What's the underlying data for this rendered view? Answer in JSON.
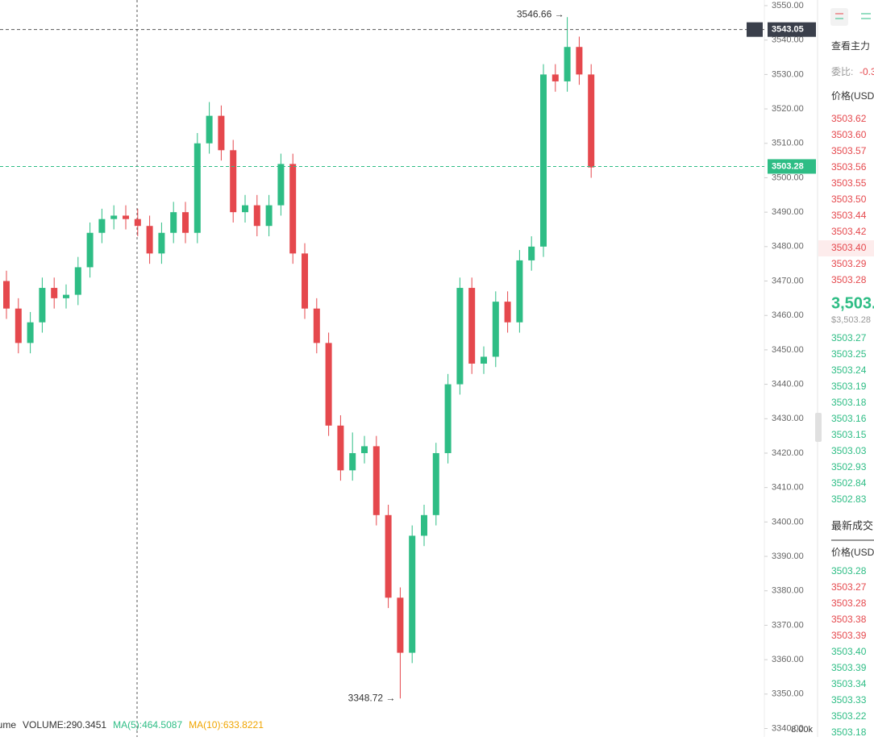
{
  "chart_data": {
    "type": "candlestick",
    "up_color": "#2ebd85",
    "down_color": "#e5484d",
    "open": [
      3470,
      3462,
      3452,
      3458,
      3468,
      3465,
      3466,
      3474,
      3484,
      3488,
      3489,
      3488,
      3486,
      3478,
      3484,
      3490,
      3484,
      3510,
      3518,
      3508,
      3490,
      3492,
      3486,
      3492,
      3504,
      3478,
      3462,
      3452,
      3428,
      3415,
      3420,
      3422,
      3402,
      3378,
      3362,
      3396,
      3402,
      3420,
      3440,
      3468,
      3446,
      3448,
      3464,
      3458,
      3476,
      3480,
      3530,
      3528,
      3538,
      3530
    ],
    "high": [
      3473,
      3465,
      3461,
      3471,
      3471,
      3469,
      3477,
      3487,
      3491,
      3492,
      3492,
      3491,
      3489,
      3487,
      3493,
      3493,
      3513,
      3522,
      3521,
      3511,
      3495,
      3495,
      3495,
      3507,
      3507,
      3481,
      3465,
      3455,
      3431,
      3426,
      3425,
      3425,
      3405,
      3381,
      3399,
      3405,
      3423,
      3443,
      3471,
      3471,
      3451,
      3467,
      3467,
      3479,
      3483,
      3533,
      3533,
      3546.66,
      3541,
      3533
    ],
    "low": [
      3459,
      3449,
      3449,
      3455,
      3462,
      3462,
      3463,
      3471,
      3481,
      3485,
      3485,
      3483,
      3475,
      3475,
      3481,
      3481,
      3481,
      3507,
      3505,
      3487,
      3487,
      3483,
      3483,
      3489,
      3475,
      3459,
      3449,
      3425,
      3412,
      3412,
      3417,
      3399,
      3375,
      3348.72,
      3359,
      3393,
      3399,
      3417,
      3437,
      3443,
      3443,
      3445,
      3455,
      3455,
      3473,
      3477,
      3525,
      3525,
      3527,
      3500
    ],
    "close": [
      3462,
      3452,
      3458,
      3468,
      3465,
      3466,
      3474,
      3484,
      3488,
      3489,
      3488,
      3486,
      3478,
      3484,
      3490,
      3484,
      3510,
      3518,
      3508,
      3490,
      3492,
      3486,
      3492,
      3504,
      3478,
      3462,
      3452,
      3428,
      3415,
      3420,
      3422,
      3402,
      3378,
      3362,
      3396,
      3402,
      3420,
      3440,
      3468,
      3446,
      3448,
      3464,
      3458,
      3476,
      3480,
      3530,
      3528,
      3538,
      3530,
      3503
    ],
    "ylim": [
      3337.6,
      3551.7
    ],
    "yticks": [
      {
        "value": 3340,
        "label": "3340.00"
      },
      {
        "value": 3350,
        "label": "3350.00"
      },
      {
        "value": 3360,
        "label": "3360.00"
      },
      {
        "value": 3370,
        "label": "3370.00"
      },
      {
        "value": 3380,
        "label": "3380.00"
      },
      {
        "value": 3390,
        "label": "3390.00"
      },
      {
        "value": 3400,
        "label": "3400.00"
      },
      {
        "value": 3410,
        "label": "3410.00"
      },
      {
        "value": 3420,
        "label": "3420.00"
      },
      {
        "value": 3430,
        "label": "3430.00"
      },
      {
        "value": 3440,
        "label": "3440.00"
      },
      {
        "value": 3450,
        "label": "3450.00"
      },
      {
        "value": 3460,
        "label": "3460.00"
      },
      {
        "value": 3470,
        "label": "3470.00"
      },
      {
        "value": 3480,
        "label": "3480.00"
      },
      {
        "value": 3490,
        "label": "3490.00"
      },
      {
        "value": 3500,
        "label": "3500.00"
      },
      {
        "value": 3510,
        "label": "3510.00"
      },
      {
        "value": 3520,
        "label": "3520.00"
      },
      {
        "value": 3530,
        "label": "3530.00"
      },
      {
        "value": 3540,
        "label": "3540.00"
      },
      {
        "value": 3550,
        "label": "3550.00"
      }
    ],
    "crosshair_price": 3543.05,
    "last_price": 3503.28,
    "annotations": {
      "high": "3546.66 →",
      "low": "3348.72 →"
    },
    "volume_legend": [
      "lume",
      "VOLUME:290.3451",
      "MA(5):464.5087",
      "MA(10):633.8221"
    ],
    "volume_axis": "8.00k"
  },
  "panel": {
    "link": "查看主力",
    "ratio_label": "委比:",
    "ratio": "-0.3",
    "price_header": "价格(USD",
    "asks": [
      "3503.62",
      "3503.60",
      "3503.57",
      "3503.56",
      "3503.55",
      "3503.50",
      "3503.44",
      "3503.42",
      "3503.40",
      "3503.29",
      "3503.28"
    ],
    "mid": "3,503.",
    "mid_usd": "$3,503.28",
    "bids": [
      "3503.27",
      "3503.25",
      "3503.24",
      "3503.19",
      "3503.18",
      "3503.16",
      "3503.15",
      "3503.03",
      "3502.93",
      "3502.84",
      "3502.83"
    ],
    "trades_title": "最新成交",
    "trades_header": "价格(USD",
    "trades": [
      {
        "price": "3503.28",
        "color": "#2ebd85"
      },
      {
        "price": "3503.27",
        "color": "#e5484d"
      },
      {
        "price": "3503.28",
        "color": "#e5484d"
      },
      {
        "price": "3503.38",
        "color": "#e5484d"
      },
      {
        "price": "3503.39",
        "color": "#e5484d"
      },
      {
        "price": "3503.40",
        "color": "#2ebd85"
      },
      {
        "price": "3503.39",
        "color": "#2ebd85"
      },
      {
        "price": "3503.34",
        "color": "#2ebd85"
      },
      {
        "price": "3503.33",
        "color": "#2ebd85"
      },
      {
        "price": "3503.22",
        "color": "#2ebd85"
      },
      {
        "price": "3503.18",
        "color": "#2ebd85"
      }
    ]
  }
}
